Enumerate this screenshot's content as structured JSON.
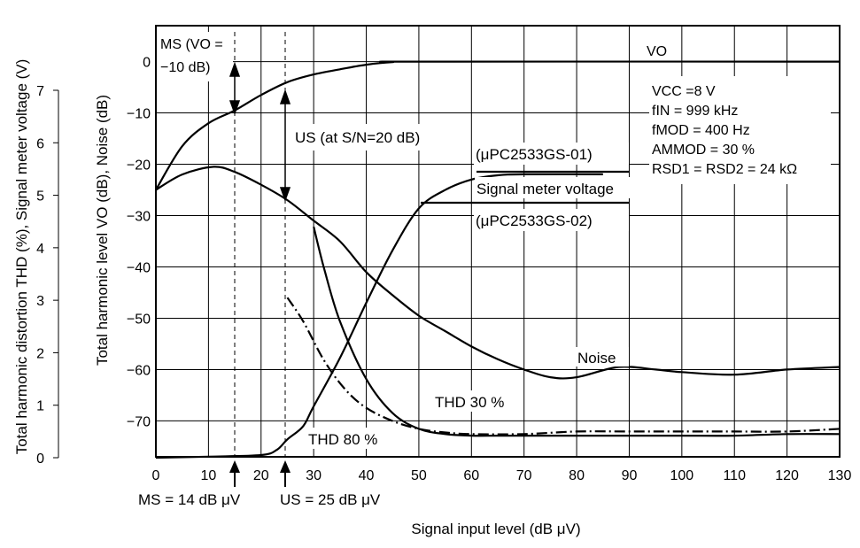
{
  "chart_data": {
    "type": "line",
    "xlabel": "Signal input level (dB μV)",
    "ylabel_left": "Total harmonic distortion THD (%), Signal meter voltage (V)",
    "ylabel_right": "Total harmonic  level VO (dB), Noise (dB)",
    "xlim": [
      0,
      130
    ],
    "ylim": [
      -77,
      7
    ],
    "ylim_left": [
      0,
      7
    ],
    "x_ticks": [
      "0",
      "10",
      "20",
      "30",
      "40",
      "50",
      "60",
      "70",
      "80",
      "90",
      "100",
      "110",
      "120",
      "130"
    ],
    "y_ticks": [
      "0",
      "-10",
      "-20",
      "-30",
      "-40",
      "-50",
      "-60",
      "-70"
    ],
    "y_ticks_left": [
      "0",
      "1",
      "2",
      "3",
      "4",
      "5",
      "6",
      "7"
    ],
    "grid": true,
    "series": [
      {
        "name": "VO",
        "style": "solid",
        "x": [
          0,
          5,
          10,
          15,
          20,
          25,
          30,
          35,
          40,
          45,
          50,
          130
        ],
        "y": [
          -25,
          -16.5,
          -12,
          -9.5,
          -6.5,
          -4,
          -2.5,
          -1.5,
          -0.6,
          -0.1,
          0,
          0
        ]
      },
      {
        "name": "Noise",
        "style": "solid",
        "x": [
          0,
          5,
          11,
          15,
          20,
          25,
          30,
          35,
          40,
          45,
          50,
          55,
          60,
          65,
          70,
          75,
          80,
          88,
          95,
          100,
          110,
          120,
          130
        ],
        "y": [
          -25,
          -22,
          -20.5,
          -21.5,
          -24,
          -27,
          -31,
          -35,
          -41,
          -45.5,
          -49.5,
          -52.5,
          -55.5,
          -58,
          -60,
          -61.5,
          -61.5,
          -59.5,
          -60,
          -60.5,
          -61,
          -60,
          -59.5
        ]
      },
      {
        "name": "Signal meter voltage",
        "style": "solid",
        "x": [
          0,
          10,
          20,
          23,
          25,
          28,
          30,
          35,
          40,
          45,
          50,
          55,
          60,
          65,
          70,
          85
        ],
        "y": [
          0,
          0.02,
          0.05,
          0.15,
          0.35,
          0.6,
          0.98,
          1.9,
          2.95,
          3.95,
          4.75,
          5.1,
          5.3,
          5.38,
          5.4,
          5.4
        ]
      },
      {
        "name": "THD 80 %",
        "style": "solid",
        "x": [
          30,
          32,
          35,
          40,
          45,
          50,
          55,
          60,
          65,
          70,
          80,
          90,
          100,
          110,
          120,
          130
        ],
        "y": [
          4.4,
          3.6,
          2.6,
          1.5,
          0.85,
          0.55,
          0.45,
          0.42,
          0.42,
          0.42,
          0.42,
          0.42,
          0.42,
          0.42,
          0.45,
          0.45
        ]
      },
      {
        "name": "THD 30 %",
        "style": "dash-dot",
        "x": [
          25,
          28,
          32,
          36,
          40,
          45,
          50,
          55,
          60,
          70,
          80,
          90,
          100,
          110,
          120,
          130
        ],
        "y": [
          3.05,
          2.6,
          1.85,
          1.3,
          0.95,
          0.7,
          0.55,
          0.48,
          0.45,
          0.45,
          0.5,
          0.5,
          0.5,
          0.5,
          0.5,
          0.55
        ]
      }
    ],
    "annotations": {
      "vo_label": "VO",
      "ms_box_line1": "MS (VO =",
      "ms_box_line2": "−10 dB)",
      "us_label": "US (at S/N=20 dB)",
      "ic01": "(μPC2533GS-01)",
      "signal_meter": "Signal meter voltage",
      "ic02": "(μPC2533GS-02)",
      "noise": "Noise",
      "thd30": "THD 30 %",
      "thd80": "THD 80 %",
      "ms_marker": "MS = 14 dB μV",
      "us_marker": "US = 25 dB μV",
      "conditions": [
        "VCC =8 V",
        "fIN = 999 kHz",
        "fMOD = 400 Hz",
        "AMMOD = 30 %",
        "RSD1 = RSD2 = 24 kΩ"
      ]
    }
  }
}
